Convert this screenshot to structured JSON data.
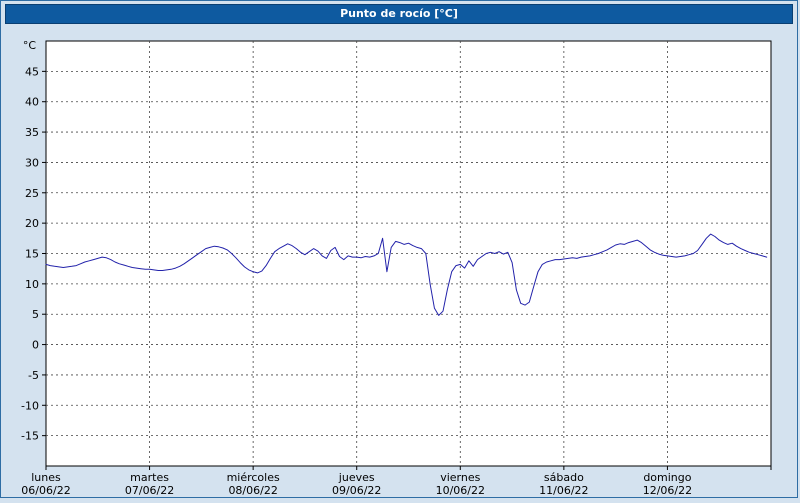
{
  "header": {
    "title": "Punto de rocío [°C]"
  },
  "chart_data": {
    "type": "line",
    "title": "Punto de rocío [°C]",
    "ylabel": "°C",
    "xlabel": "",
    "ylim": [
      -20,
      50
    ],
    "yticks": [
      45,
      40,
      35,
      30,
      25,
      20,
      15,
      10,
      5,
      0,
      -5,
      -10,
      -15
    ],
    "grid": "dashed",
    "legend_position": "none",
    "points_per_day": 24,
    "x_days": [
      {
        "name": "lunes",
        "date": "06/06/22"
      },
      {
        "name": "martes",
        "date": "07/06/22"
      },
      {
        "name": "miércoles",
        "date": "08/06/22"
      },
      {
        "name": "jueves",
        "date": "09/06/22"
      },
      {
        "name": "viernes",
        "date": "10/06/22"
      },
      {
        "name": "sábado",
        "date": "11/06/22"
      },
      {
        "name": "domingo",
        "date": "12/06/22"
      }
    ],
    "series": [
      {
        "name": "Punto de rocío",
        "color": "#2222aa",
        "values": [
          13.2,
          13.0,
          12.9,
          12.8,
          12.7,
          12.8,
          12.9,
          13.0,
          13.3,
          13.6,
          13.8,
          14.0,
          14.2,
          14.4,
          14.3,
          14.0,
          13.6,
          13.3,
          13.1,
          12.9,
          12.7,
          12.6,
          12.5,
          12.4,
          12.4,
          12.3,
          12.2,
          12.2,
          12.3,
          12.4,
          12.6,
          12.9,
          13.3,
          13.8,
          14.3,
          14.8,
          15.3,
          15.8,
          16.0,
          16.2,
          16.1,
          15.9,
          15.6,
          15.0,
          14.3,
          13.5,
          12.8,
          12.3,
          12.0,
          11.8,
          12.1,
          13.0,
          14.2,
          15.3,
          15.8,
          16.2,
          16.6,
          16.3,
          15.8,
          15.2,
          14.8,
          15.3,
          15.8,
          15.4,
          14.6,
          14.2,
          15.5,
          16.0,
          14.5,
          14.0,
          14.6,
          14.4,
          14.4,
          14.3,
          14.5,
          14.4,
          14.6,
          15.0,
          17.5,
          12.0,
          16.0,
          17.0,
          16.8,
          16.5,
          16.7,
          16.3,
          16.0,
          15.8,
          15.0,
          10.0,
          6.0,
          4.8,
          5.5,
          9.0,
          12.0,
          13.0,
          13.2,
          12.6,
          13.8,
          12.9,
          14.0,
          14.5,
          15.0,
          15.2,
          15.0,
          15.3,
          14.9,
          15.2,
          13.5,
          9.0,
          6.8,
          6.5,
          7.0,
          9.5,
          12.0,
          13.2,
          13.6,
          13.8,
          14.0,
          14.0,
          14.1,
          14.2,
          14.3,
          14.2,
          14.4,
          14.5,
          14.6,
          14.8,
          15.0,
          15.3,
          15.6,
          16.0,
          16.4,
          16.6,
          16.5,
          16.8,
          17.0,
          17.2,
          16.8,
          16.2,
          15.6,
          15.2,
          14.9,
          14.7,
          14.6,
          14.5,
          14.4,
          14.5,
          14.6,
          14.8,
          15.0,
          15.5,
          16.5,
          17.5,
          18.2,
          17.8,
          17.2,
          16.8,
          16.5,
          16.7,
          16.2,
          15.8,
          15.5,
          15.2,
          15.0,
          14.8,
          14.6,
          14.4
        ]
      }
    ],
    "plot": {
      "background": "#ffffff",
      "border_color": "#000000",
      "gridline_color": "#444444",
      "page_background": "#d4e2ef",
      "titlebar_background": "#0e5aa0"
    }
  }
}
